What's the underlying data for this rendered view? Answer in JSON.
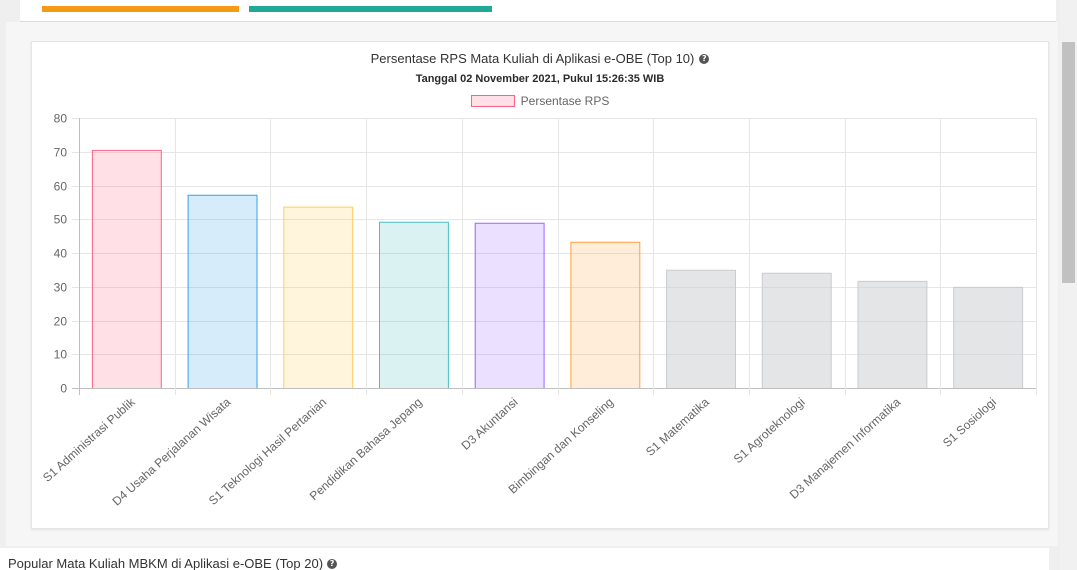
{
  "info_boxes": {
    "progress_bar_colors": [
      "#f39c12",
      "#22a896"
    ]
  },
  "chart_header": {
    "help_icon": "question-circle-icon"
  },
  "chart_data": {
    "type": "bar",
    "title": "Persentase RPS Mata Kuliah di Aplikasi e-OBE (Top 10)",
    "subtitle": "Tanggal 02 November 2021, Pukul 15:26:35 WIB",
    "categories": [
      "S1 Administrasi Publik",
      "D4 Usaha Perjalanan Wisata",
      "S1 Teknologi Hasil Pertanian",
      "Pendidikan Bahasa Jepang",
      "D3 Akuntansi",
      "Bimbingan dan Konseling",
      "S1 Matematika",
      "S1 Agroteknologi",
      "D3 Manajemen Informatika",
      "S1 Sosiologi"
    ],
    "series": [
      {
        "name": "Persentase RPS",
        "values": [
          70.4,
          57.1,
          53.6,
          49.1,
          48.8,
          43.2,
          34.9,
          34.0,
          31.6,
          29.8
        ]
      }
    ],
    "ylim": [
      0,
      80
    ],
    "yticks": [
      0,
      10,
      20,
      30,
      40,
      50,
      60,
      70,
      80
    ],
    "grid": true,
    "legend": "top",
    "bar_fill_colors": [
      "#ff638433",
      "#36a2eb33",
      "#ffce5633",
      "#4bc0c033",
      "#9966ff33",
      "#ff9f4033",
      "#c9cbcf80",
      "#c9cbcf80",
      "#c9cbcf80",
      "#c9cbcf80"
    ],
    "bar_border_colors": [
      "#ff6384",
      "#36a2eb",
      "#ffce56",
      "#4bc0c0",
      "#9966ff",
      "#ff9f40",
      "#c9cbcf",
      "#c9cbcf",
      "#c9cbcf",
      "#c9cbcf"
    ]
  },
  "mbkm_section": {
    "title": "Popular Mata Kuliah MBKM di Aplikasi e-OBE (Top 20)",
    "help_icon": "question-circle-icon"
  }
}
